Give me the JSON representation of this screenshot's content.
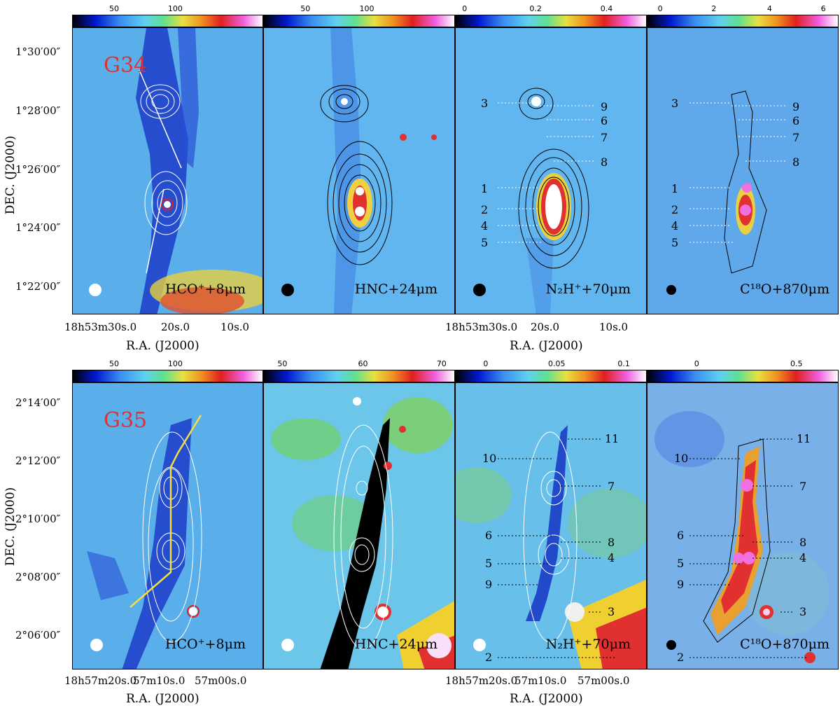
{
  "top": {
    "colorbars": [
      {
        "ticks": [
          "50",
          "100"
        ],
        "pos": [
          0.22,
          0.54
        ]
      },
      {
        "ticks": [
          "50",
          "100"
        ],
        "pos": [
          0.22,
          0.54
        ]
      },
      {
        "ticks": [
          "0",
          "0.2",
          "0.4"
        ],
        "pos": [
          0.05,
          0.42,
          0.79
        ]
      },
      {
        "ticks": [
          "0",
          "2",
          "4",
          "6"
        ],
        "pos": [
          0.07,
          0.35,
          0.64,
          0.92
        ]
      }
    ],
    "source": "G34",
    "panel_labels": [
      "HCO$^+$+8$\\mu$m",
      "HNC+24$\\mu$m",
      "N$_2$H$^+$+70$\\mu$m",
      "C$^{18}$O+870$\\mu$m"
    ],
    "panel_labels_display": [
      "HCO⁺+8μm",
      "HNC+24μm",
      "N₂H⁺+70μm",
      "C¹⁸O+870μm"
    ],
    "ylabel": "DEC. (J2000)",
    "yticks": [
      "1°30′00″",
      "1°28′00″",
      "1°26′00″",
      "1°24′00″",
      "1°22′00″"
    ],
    "xlabel": "R.A. (J2000)",
    "xticks_left": [
      "18h53m30s.0",
      "20s.0",
      "10s.0"
    ],
    "xticks_right": [
      "18h53m30s.0",
      "20s.0",
      "10s.0"
    ],
    "cores_left": [
      "3",
      "1",
      "2",
      "4",
      "5"
    ],
    "cores_right": [
      "9",
      "6",
      "7",
      "8"
    ]
  },
  "bottom": {
    "colorbars": [
      {
        "ticks": [
          "50",
          "100"
        ],
        "pos": [
          0.22,
          0.54
        ]
      },
      {
        "ticks": [
          "50",
          "60",
          "70"
        ],
        "pos": [
          0.1,
          0.52,
          0.93
        ]
      },
      {
        "ticks": [
          "0",
          "0.05",
          "0.1"
        ],
        "pos": [
          0.16,
          0.53,
          0.88
        ]
      },
      {
        "ticks": [
          "0",
          "0.5"
        ],
        "pos": [
          0.26,
          0.78
        ]
      }
    ],
    "source": "G35",
    "panel_labels_display": [
      "HCO⁺+8μm",
      "HNC+24μm",
      "N₂H⁺+70μm",
      "C¹⁸O+870μm"
    ],
    "ylabel": "DEC. (J2000)",
    "yticks": [
      "2°14′00″",
      "2°12′00″",
      "2°10′00″",
      "2°08′00″",
      "2°06′00″"
    ],
    "xlabel": "R.A. (J2000)",
    "xticks_left": [
      "18h57m20s.0",
      "57m10s.0",
      "57m00s.0"
    ],
    "xticks_right": [
      "18h57m20s.0",
      "57m10s.0",
      "57m00s.0"
    ],
    "cores_left": [
      "10",
      "6",
      "5",
      "9",
      "2"
    ],
    "cores_right": [
      "11",
      "7",
      "8",
      "4",
      "3"
    ]
  },
  "colors": {
    "source_label": "#e03030",
    "contour_white": "#ffffff",
    "contour_black": "#000000",
    "filament_line": "#f0e040"
  }
}
